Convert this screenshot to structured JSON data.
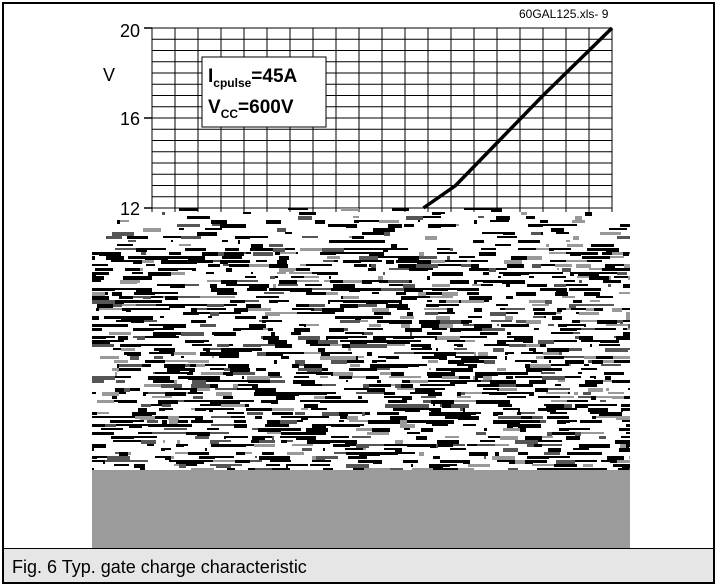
{
  "chart_data": {
    "type": "line",
    "file_label": "60GAL125.xls- 9",
    "y_unit": "V",
    "y_ticks": [
      "20",
      "16",
      "12"
    ],
    "ylim": [
      12,
      20
    ],
    "legend": {
      "line1_main": "I",
      "line1_sub": "cpulse",
      "line1_rest": "=45A",
      "line2_main": "V",
      "line2_sub": "CC",
      "line2_rest": "=600V"
    },
    "series": [
      {
        "points": [
          [
            0.59,
            12
          ],
          [
            0.66,
            13
          ],
          [
            0.755,
            15
          ],
          [
            0.85,
            17
          ],
          [
            1.0,
            20
          ]
        ]
      }
    ]
  },
  "caption": "Fig. 6 Typ. gate charge characteristic",
  "colors": {
    "line": "#000000",
    "grid": "#000000",
    "obscured_gray": "#9b9b9b",
    "caption_bg": "#e6e6e6"
  }
}
